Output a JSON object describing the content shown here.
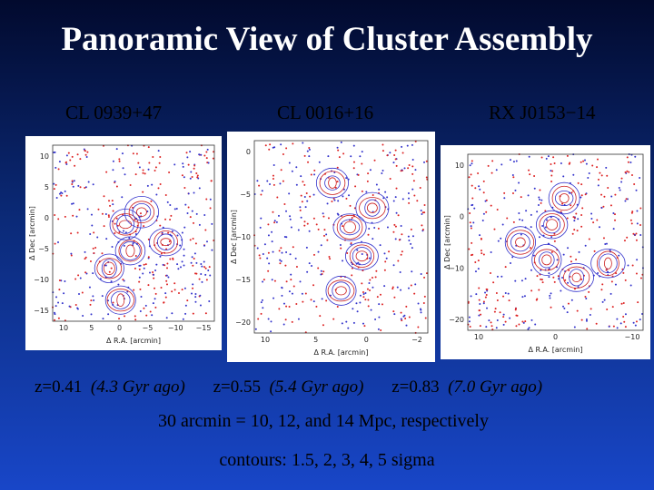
{
  "title": "Panoramic View of Cluster Assembly",
  "panels": [
    {
      "name": "CL 0939+47",
      "redshift": "z=0.41",
      "age": "(4.3 Gyr ago)",
      "x_label": "Δ R.A. [arcmin]",
      "y_label": "Δ Dec [arcmin]",
      "x_ticks": [
        "10",
        "5",
        "0",
        "−5",
        "−10",
        "−15"
      ],
      "y_ticks": [
        "10",
        "5",
        "0",
        "−5",
        "−10",
        "−15"
      ]
    },
    {
      "name": "CL 0016+16",
      "redshift": "z=0.55",
      "age": "(5.4 Gyr ago)",
      "x_label": "Δ R.A. [arcmin]",
      "y_label": "Δ Dec [arcmin]",
      "x_ticks": [
        "10",
        "5",
        "0",
        "−2"
      ],
      "y_ticks": [
        "0",
        "−5",
        "−10",
        "−15",
        "−20"
      ]
    },
    {
      "name": "RX J0153−14",
      "redshift": "z=0.83",
      "age": "(7.0 Gyr ago)",
      "x_label": "Δ R.A. [arcmin]",
      "y_label": "Δ Dec [arcmin]",
      "x_ticks": [
        "10",
        "0",
        "−10"
      ],
      "y_ticks": [
        "10",
        "0",
        "−10",
        "−20"
      ]
    }
  ],
  "scale_note": "30 arcmin = 10, 12, and 14 Mpc, respectively",
  "contours_note": "contours: 1.5, 2, 3, 4, 5 sigma"
}
